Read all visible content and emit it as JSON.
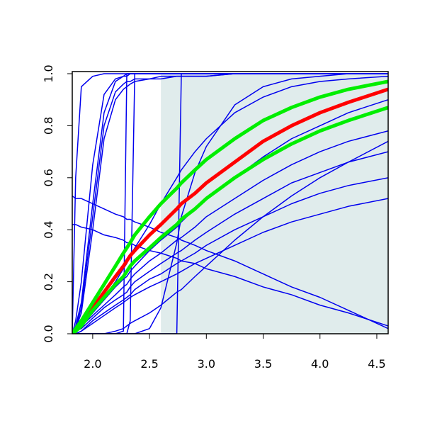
{
  "chart_data": {
    "type": "line",
    "x": [
      1.82,
      1.85,
      1.9,
      2.0,
      2.1,
      2.2,
      2.27,
      2.3,
      2.33,
      2.37,
      2.5,
      2.6,
      2.74,
      2.78,
      2.9,
      3.0,
      3.25,
      3.5,
      3.75,
      4.0,
      4.25,
      4.6
    ],
    "xlim": [
      1.82,
      4.6
    ],
    "ylim": [
      0,
      1
    ],
    "xticks": [
      {
        "value": 2,
        "label": "2.0"
      },
      2.5,
      {
        "value": 3,
        "label": "3.0"
      },
      3.5,
      {
        "value": 4,
        "label": "4.0"
      },
      4.5
    ],
    "yticks": [
      {
        "value": 0,
        "label": "0.0"
      },
      0.2,
      0.4,
      0.6,
      0.8,
      {
        "value": 1,
        "label": "1.0"
      }
    ],
    "shaded_region": {
      "xlim": [
        2.6,
        4.6
      ],
      "color": "#e0ecec"
    },
    "series": [
      {
        "color": "#0000ee",
        "linewidth": 1.5,
        "values": [
          0,
          0.6,
          0.95,
          0.99,
          1,
          1,
          1,
          1,
          1,
          1,
          1,
          1,
          1,
          1,
          1,
          1,
          1,
          1,
          1,
          1,
          1,
          1
        ]
      },
      {
        "color": "#0000ee",
        "linewidth": 1.5,
        "values": [
          0,
          0.03,
          0.12,
          0.5,
          0.85,
          0.97,
          0.99,
          1,
          1,
          1,
          1,
          1,
          1,
          1,
          1,
          1,
          1,
          1,
          1,
          1,
          1,
          1
        ]
      },
      {
        "color": "#0000ee",
        "linewidth": 1.5,
        "values": [
          0,
          0.05,
          0.2,
          0.65,
          0.92,
          0.98,
          0.99,
          0.99,
          1,
          1,
          1,
          1,
          1,
          1,
          1,
          1,
          1,
          1,
          1,
          1,
          1,
          1
        ]
      },
      {
        "color": "#0000ee",
        "linewidth": 1.5,
        "values": [
          0,
          0.02,
          0.08,
          0.4,
          0.75,
          0.9,
          0.94,
          0.95,
          0.96,
          0.97,
          0.98,
          0.98,
          0.99,
          0.99,
          0.99,
          0.99,
          1,
          1,
          1,
          1,
          1,
          1
        ]
      },
      {
        "color": "#0000ee",
        "linewidth": 1.5,
        "values": [
          0,
          0.02,
          0.1,
          0.45,
          0.8,
          0.93,
          0.96,
          0.97,
          0.97,
          0.98,
          0.98,
          0.99,
          0.99,
          0.99,
          0.99,
          0.99,
          1,
          1,
          1,
          1,
          1,
          1
        ]
      },
      {
        "color": "#0000ee",
        "linewidth": 1.5,
        "values": [
          0,
          0,
          0,
          0,
          0,
          0,
          0.01,
          1,
          1,
          1,
          1,
          1,
          1,
          1,
          1,
          1,
          1,
          1,
          1,
          1,
          1,
          1
        ]
      },
      {
        "color": "#0000ee",
        "linewidth": 1.5,
        "values": [
          0,
          0,
          0,
          0,
          0,
          0,
          0,
          0,
          0.05,
          1,
          1,
          1,
          1,
          1,
          1,
          1,
          1,
          1,
          1,
          1,
          1,
          1
        ]
      },
      {
        "color": "#0000ee",
        "linewidth": 1.5,
        "values": [
          0,
          0,
          0,
          0,
          0,
          0,
          0,
          0,
          0,
          0,
          0,
          0,
          0,
          1,
          1,
          1,
          1,
          1,
          1,
          1,
          1,
          1
        ]
      },
      {
        "color": "#0000ee",
        "linewidth": 1.5,
        "values": [
          0,
          0,
          0,
          0,
          0,
          0,
          0,
          0,
          0,
          0,
          0.02,
          0.1,
          0.35,
          0.45,
          0.62,
          0.72,
          0.88,
          0.95,
          0.98,
          0.99,
          1,
          1
        ]
      },
      {
        "color": "#0000ee",
        "linewidth": 1.5,
        "values": [
          0.53,
          0.52,
          0.52,
          0.5,
          0.48,
          0.46,
          0.45,
          0.44,
          0.44,
          0.43,
          0.41,
          0.39,
          0.37,
          0.36,
          0.34,
          0.32,
          0.28,
          0.23,
          0.18,
          0.14,
          0.09,
          0.02
        ]
      },
      {
        "color": "#0000ee",
        "linewidth": 1.5,
        "values": [
          0.42,
          0.42,
          0.41,
          0.4,
          0.38,
          0.37,
          0.36,
          0.35,
          0.35,
          0.34,
          0.32,
          0.31,
          0.29,
          0.28,
          0.27,
          0.25,
          0.22,
          0.18,
          0.15,
          0.11,
          0.08,
          0.03
        ]
      },
      {
        "color": "#0000ee",
        "linewidth": 1.5,
        "values": [
          0,
          0,
          0.01,
          0.04,
          0.07,
          0.1,
          0.12,
          0.13,
          0.14,
          0.15,
          0.18,
          0.2,
          0.23,
          0.24,
          0.27,
          0.29,
          0.34,
          0.39,
          0.43,
          0.46,
          0.49,
          0.52
        ]
      },
      {
        "color": "#0000ee",
        "linewidth": 1.5,
        "values": [
          0,
          0,
          0.01,
          0.05,
          0.08,
          0.11,
          0.13,
          0.14,
          0.15,
          0.17,
          0.21,
          0.23,
          0.27,
          0.28,
          0.31,
          0.34,
          0.4,
          0.45,
          0.5,
          0.54,
          0.57,
          0.6
        ]
      },
      {
        "color": "#0000ee",
        "linewidth": 1.5,
        "values": [
          0,
          0.01,
          0.02,
          0.06,
          0.1,
          0.13,
          0.15,
          0.16,
          0.18,
          0.2,
          0.24,
          0.27,
          0.31,
          0.32,
          0.36,
          0.39,
          0.46,
          0.52,
          0.58,
          0.62,
          0.66,
          0.7
        ]
      },
      {
        "color": "#0000ee",
        "linewidth": 1.5,
        "values": [
          0,
          0.01,
          0.03,
          0.07,
          0.11,
          0.15,
          0.18,
          0.19,
          0.21,
          0.23,
          0.28,
          0.31,
          0.36,
          0.37,
          0.41,
          0.45,
          0.52,
          0.59,
          0.65,
          0.7,
          0.74,
          0.78
        ]
      },
      {
        "color": "#0000ee",
        "linewidth": 1.5,
        "values": [
          0,
          0.01,
          0.03,
          0.08,
          0.13,
          0.18,
          0.21,
          0.22,
          0.24,
          0.26,
          0.32,
          0.36,
          0.41,
          0.43,
          0.48,
          0.52,
          0.6,
          0.68,
          0.75,
          0.8,
          0.85,
          0.9
        ]
      },
      {
        "color": "#0000ee",
        "linewidth": 1.5,
        "values": [
          0,
          0,
          0,
          0,
          0,
          0.01,
          0.02,
          0.03,
          0.04,
          0.05,
          0.08,
          0.11,
          0.16,
          0.17,
          0.22,
          0.26,
          0.36,
          0.45,
          0.53,
          0.6,
          0.66,
          0.74
        ]
      },
      {
        "color": "#0000ee",
        "linewidth": 1.5,
        "values": [
          0,
          0.01,
          0.03,
          0.08,
          0.14,
          0.2,
          0.25,
          0.27,
          0.3,
          0.33,
          0.42,
          0.5,
          0.6,
          0.63,
          0.7,
          0.75,
          0.85,
          0.91,
          0.95,
          0.97,
          0.98,
          0.99
        ]
      },
      {
        "color": "#ff0000",
        "linewidth": 5,
        "values": [
          0,
          0.01,
          0.04,
          0.1,
          0.16,
          0.22,
          0.26,
          0.28,
          0.3,
          0.32,
          0.38,
          0.42,
          0.48,
          0.5,
          0.54,
          0.58,
          0.66,
          0.74,
          0.8,
          0.85,
          0.89,
          0.94
        ]
      },
      {
        "color": "#00ee00",
        "linewidth": 5,
        "values": [
          0,
          0.02,
          0.05,
          0.12,
          0.19,
          0.26,
          0.31,
          0.33,
          0.35,
          0.38,
          0.45,
          0.5,
          0.56,
          0.58,
          0.63,
          0.67,
          0.75,
          0.82,
          0.87,
          0.91,
          0.94,
          0.97
        ]
      },
      {
        "color": "#00ee00",
        "linewidth": 5,
        "values": [
          0,
          0.01,
          0.03,
          0.09,
          0.14,
          0.19,
          0.22,
          0.24,
          0.26,
          0.28,
          0.33,
          0.37,
          0.42,
          0.44,
          0.48,
          0.52,
          0.6,
          0.67,
          0.73,
          0.78,
          0.82,
          0.87
        ]
      }
    ]
  }
}
